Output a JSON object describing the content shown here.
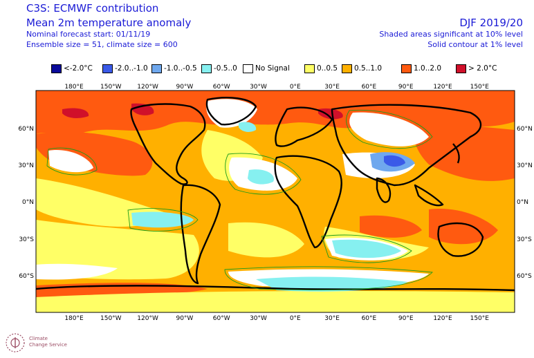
{
  "header": {
    "title_main": "C3S: ECMWF contribution",
    "title_var": "Mean 2m temperature anomaly",
    "forecast_start": "Nominal forecast start: 01/11/19",
    "ensemble": "Ensemble size = 51, climate size = 600",
    "period": "DJF 2019/20",
    "note_shaded": "Shaded areas significant at 10% level",
    "note_contour": "Solid contour at 1% level"
  },
  "legend": [
    {
      "label": "<-2.0°C",
      "color": "#0a0a9a"
    },
    {
      "label": "-2.0..-1.0",
      "color": "#3a5ae8"
    },
    {
      "label": "-1.0..-0.5",
      "color": "#6fa8ee"
    },
    {
      "label": "-0.5..0",
      "color": "#86f0f0"
    },
    {
      "label": "No Signal",
      "color": "#ffffff"
    },
    {
      "label": "0..0.5",
      "color": "#ffff66"
    },
    {
      "label": "0.5..1.0",
      "color": "#ffb000"
    },
    {
      "label": "1.0..2.0",
      "color": "#ff5a10"
    },
    {
      "label": "> 2.0°C",
      "color": "#d0102a"
    }
  ],
  "axes": {
    "lon_ticks": [
      "180°E",
      "150°W",
      "120°W",
      "90°W",
      "60°W",
      "30°W",
      "0°E",
      "30°E",
      "60°E",
      "90°E",
      "120°E",
      "150°E"
    ],
    "lat_ticks": [
      "60°N",
      "30°N",
      "0°N",
      "30°S",
      "60°S"
    ]
  },
  "colors": {
    "ocean_base": "#ffb000",
    "arctic_warm": "#ff5a10",
    "coast": "#000000",
    "contour": "#1a9a1a"
  },
  "logo": {
    "line1": "Climate",
    "line2": "Change Service"
  }
}
